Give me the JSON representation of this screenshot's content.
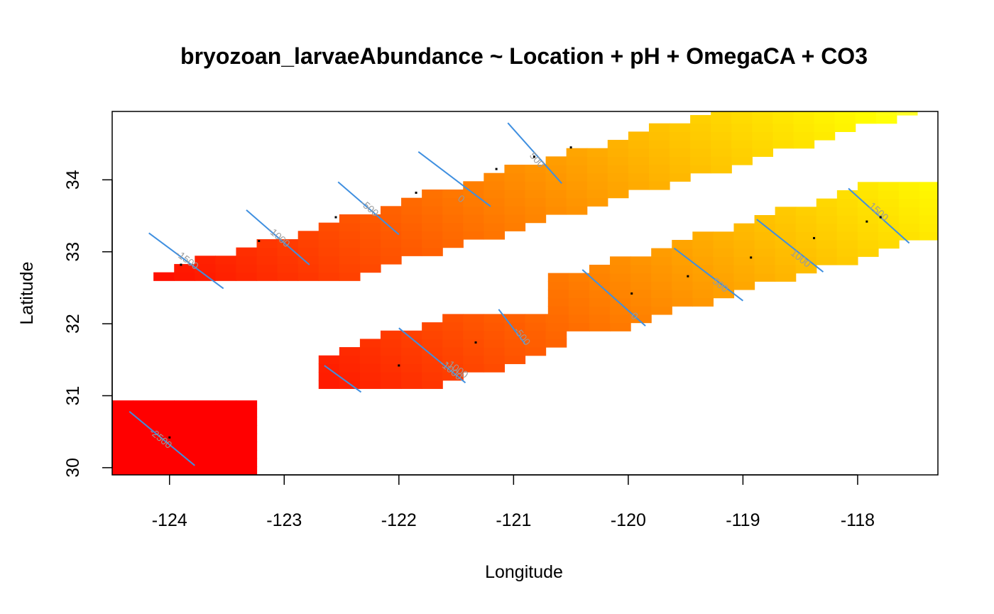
{
  "chart_data": {
    "type": "heatmap",
    "title": "bryozoan_larvaeAbundance ~ Location + pH + OmegaCA + CO3",
    "xlabel": "Longitude",
    "ylabel": "Latitude",
    "xlim": [
      -124.5,
      -117.3
    ],
    "ylim": [
      29.9,
      34.95
    ],
    "x_ticks": [
      -124,
      -123,
      -122,
      -121,
      -120,
      -119,
      -118
    ],
    "y_ticks": [
      30,
      31,
      32,
      33,
      34
    ],
    "x_tick_labels": [
      "-124",
      "-123",
      "-122",
      "-121",
      "-120",
      "-119",
      "-118"
    ],
    "y_tick_labels": [
      "30",
      "31",
      "32",
      "33",
      "34"
    ],
    "color_scale": {
      "name": "heat",
      "low": "#ff0000",
      "mid": "#ff9900",
      "high": "#ffff00",
      "top": "#ffffe8"
    },
    "grid": false,
    "legend": "none",
    "cell_size": {
      "dx": 0.18,
      "dy": 0.115
    },
    "patches": [
      {
        "name": "patch-north",
        "x0": -124.5,
        "y0": 32.6,
        "x1": -117.3,
        "y1": 34.95,
        "angle_deg": 25,
        "half_width": 0.42
      },
      {
        "name": "patch-central",
        "x0": -122.7,
        "y0": 31.1,
        "x1": -120.6,
        "y1": 32.1,
        "angle_deg": 25,
        "half_width": 0.45
      },
      {
        "name": "patch-east",
        "x0": -120.7,
        "y0": 31.9,
        "x1": -117.3,
        "y1": 33.95,
        "angle_deg": 25,
        "half_width": 0.48
      },
      {
        "name": "patch-south",
        "x0": -124.5,
        "y0": 29.9,
        "x1": -123.3,
        "y1": 30.9,
        "angle_deg": 0,
        "half_width": 2
      }
    ],
    "field": {
      "base": -3300,
      "slope_lon": 430,
      "slope_lat": 320,
      "vmin": -2700,
      "vmax": 1700
    },
    "contours": [
      {
        "label": "-2500",
        "x1": -124.35,
        "y1": 30.78,
        "x2": -123.78,
        "y2": 30.03,
        "lx": -124.08,
        "ly": 30.4
      },
      {
        "label": "-1500",
        "x1": -124.18,
        "y1": 33.26,
        "x2": -123.53,
        "y2": 32.49,
        "lx": -123.85,
        "ly": 32.88
      },
      {
        "label": "-1000",
        "x1": -123.33,
        "y1": 33.58,
        "x2": -122.78,
        "y2": 32.82,
        "lx": -123.05,
        "ly": 33.2
      },
      {
        "label": "-500",
        "x1": -122.53,
        "y1": 33.97,
        "x2": -122.0,
        "y2": 33.24,
        "lx": -122.26,
        "ly": 33.6
      },
      {
        "label": "0",
        "x1": -121.83,
        "y1": 34.39,
        "x2": -121.2,
        "y2": 33.63,
        "lx": -121.46,
        "ly": 33.73
      },
      {
        "label": "500",
        "x1": -121.05,
        "y1": 34.79,
        "x2": -120.58,
        "y2": 33.95,
        "lx": -120.8,
        "ly": 34.27
      },
      {
        "label": "-1000",
        "x1": -122.65,
        "y1": 31.42,
        "x2": -122.33,
        "y2": 31.05,
        "lx": -121.5,
        "ly": 31.37
      },
      {
        "label": "-1000",
        "x1": -122.0,
        "y1": 31.94,
        "x2": -121.42,
        "y2": 31.18,
        "lx": -121.55,
        "ly": 31.35
      },
      {
        "label": "-500",
        "x1": -121.13,
        "y1": 32.2,
        "x2": -120.9,
        "y2": 31.72,
        "lx": -120.93,
        "ly": 31.82
      },
      {
        "label": "0",
        "x1": -120.4,
        "y1": 32.75,
        "x2": -119.85,
        "y2": 31.97,
        "lx": -119.95,
        "ly": 32.1
      },
      {
        "label": "500",
        "x1": -119.6,
        "y1": 33.05,
        "x2": -119.0,
        "y2": 32.32,
        "lx": -119.2,
        "ly": 32.53
      },
      {
        "label": "1000",
        "x1": -118.88,
        "y1": 33.45,
        "x2": -118.3,
        "y2": 32.72,
        "lx": -118.5,
        "ly": 32.9
      },
      {
        "label": "1500",
        "x1": -118.08,
        "y1": 33.88,
        "x2": -117.55,
        "y2": 33.12,
        "lx": -117.82,
        "ly": 33.55
      }
    ],
    "points": [
      {
        "x": -124.0,
        "y": 30.42
      },
      {
        "x": -123.9,
        "y": 32.82
      },
      {
        "x": -123.22,
        "y": 33.15
      },
      {
        "x": -122.55,
        "y": 33.48
      },
      {
        "x": -121.85,
        "y": 33.82
      },
      {
        "x": -121.15,
        "y": 34.15
      },
      {
        "x": -120.82,
        "y": 34.32
      },
      {
        "x": -120.5,
        "y": 34.45
      },
      {
        "x": -122.0,
        "y": 31.42
      },
      {
        "x": -121.33,
        "y": 31.74
      },
      {
        "x": -119.97,
        "y": 32.42
      },
      {
        "x": -119.48,
        "y": 32.66
      },
      {
        "x": -118.93,
        "y": 32.92
      },
      {
        "x": -118.38,
        "y": 33.19
      },
      {
        "x": -117.92,
        "y": 33.42
      },
      {
        "x": -117.8,
        "y": 33.48
      }
    ]
  }
}
